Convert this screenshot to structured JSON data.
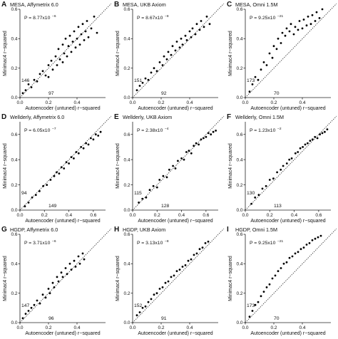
{
  "chart_data": [
    {
      "panel_letter": "A",
      "type": "scatter",
      "title": "MESA, Affymetrix 6.0",
      "xlabel": "Autoencoder (untuned) r−squared",
      "ylabel": "Minimac4 r−squared",
      "xlim": [
        0,
        0.6
      ],
      "ylim": [
        0,
        0.6
      ],
      "x_ticks": [
        "0.0",
        "0.2",
        "0.4"
      ],
      "y_ticks": [
        "0.0",
        "0.2",
        "0.4",
        "0.6"
      ],
      "p_label": "P = 8.77x10",
      "p_exponent": "−6",
      "count_left": "146",
      "count_below": "97",
      "reference_line": "y = x (dotted)",
      "points": [
        [
          0.02,
          0.03
        ],
        [
          0.04,
          0.05
        ],
        [
          0.06,
          0.09
        ],
        [
          0.08,
          0.07
        ],
        [
          0.1,
          0.12
        ],
        [
          0.12,
          0.11
        ],
        [
          0.14,
          0.16
        ],
        [
          0.16,
          0.18
        ],
        [
          0.18,
          0.15
        ],
        [
          0.2,
          0.22
        ],
        [
          0.2,
          0.14
        ],
        [
          0.22,
          0.25
        ],
        [
          0.23,
          0.19
        ],
        [
          0.25,
          0.28
        ],
        [
          0.26,
          0.22
        ],
        [
          0.27,
          0.33
        ],
        [
          0.28,
          0.26
        ],
        [
          0.3,
          0.36
        ],
        [
          0.3,
          0.24
        ],
        [
          0.31,
          0.3
        ],
        [
          0.32,
          0.4
        ],
        [
          0.33,
          0.28
        ],
        [
          0.34,
          0.35
        ],
        [
          0.35,
          0.42
        ],
        [
          0.36,
          0.31
        ],
        [
          0.37,
          0.38
        ],
        [
          0.38,
          0.45
        ],
        [
          0.39,
          0.34
        ],
        [
          0.4,
          0.4
        ],
        [
          0.41,
          0.48
        ],
        [
          0.42,
          0.36
        ],
        [
          0.43,
          0.43
        ],
        [
          0.44,
          0.5
        ],
        [
          0.45,
          0.39
        ],
        [
          0.46,
          0.45
        ],
        [
          0.47,
          0.52
        ],
        [
          0.48,
          0.41
        ],
        [
          0.5,
          0.47
        ],
        [
          0.52,
          0.55
        ],
        [
          0.54,
          0.44
        ]
      ]
    },
    {
      "panel_letter": "B",
      "type": "scatter",
      "title": "MESA, UKB Axiom",
      "xlabel": "Autoencoder (untuned) r−squared",
      "ylabel": "Minimac4 r−squared",
      "xlim": [
        0,
        0.6
      ],
      "ylim": [
        0,
        0.6
      ],
      "x_ticks": [
        "0.0",
        "0.2",
        "0.4"
      ],
      "y_ticks": [
        "0.0",
        "0.2",
        "0.4",
        "0.6"
      ],
      "p_label": "P = 8.67x10",
      "p_exponent": "−8",
      "count_left": "151",
      "count_below": "92",
      "reference_line": "y = x (dotted)",
      "points": [
        [
          0.03,
          0.05
        ],
        [
          0.05,
          0.08
        ],
        [
          0.07,
          0.1
        ],
        [
          0.09,
          0.13
        ],
        [
          0.11,
          0.12
        ],
        [
          0.13,
          0.17
        ],
        [
          0.15,
          0.2
        ],
        [
          0.17,
          0.18
        ],
        [
          0.19,
          0.24
        ],
        [
          0.21,
          0.22
        ],
        [
          0.22,
          0.28
        ],
        [
          0.24,
          0.26
        ],
        [
          0.25,
          0.31
        ],
        [
          0.27,
          0.29
        ],
        [
          0.28,
          0.35
        ],
        [
          0.3,
          0.32
        ],
        [
          0.31,
          0.38
        ],
        [
          0.33,
          0.34
        ],
        [
          0.34,
          0.4
        ],
        [
          0.35,
          0.36
        ],
        [
          0.37,
          0.42
        ],
        [
          0.38,
          0.39
        ],
        [
          0.4,
          0.45
        ],
        [
          0.41,
          0.41
        ],
        [
          0.42,
          0.47
        ],
        [
          0.44,
          0.43
        ],
        [
          0.45,
          0.5
        ],
        [
          0.47,
          0.46
        ],
        [
          0.48,
          0.52
        ],
        [
          0.5,
          0.48
        ],
        [
          0.52,
          0.55
        ],
        [
          0.54,
          0.5
        ]
      ]
    },
    {
      "panel_letter": "C",
      "type": "scatter",
      "title": "MESA, Omni 1.5M",
      "xlabel": "Autoencoder (untuned) r−squared",
      "ylabel": "Minimac4 r−squared",
      "xlim": [
        0,
        0.6
      ],
      "ylim": [
        0,
        0.6
      ],
      "x_ticks": [
        "0.0",
        "0.2",
        "0.4"
      ],
      "y_ticks": [
        "0.0",
        "0.2",
        "0.4",
        "0.6"
      ],
      "p_label": "P = 9.25x10",
      "p_exponent": "−21",
      "count_left": "173",
      "count_below": "70",
      "reference_line": "y = x (dotted)",
      "points": [
        [
          0.03,
          0.04
        ],
        [
          0.05,
          0.09
        ],
        [
          0.07,
          0.14
        ],
        [
          0.09,
          0.12
        ],
        [
          0.11,
          0.19
        ],
        [
          0.13,
          0.24
        ],
        [
          0.15,
          0.22
        ],
        [
          0.17,
          0.3
        ],
        [
          0.19,
          0.27
        ],
        [
          0.2,
          0.35
        ],
        [
          0.22,
          0.33
        ],
        [
          0.23,
          0.4
        ],
        [
          0.25,
          0.37
        ],
        [
          0.26,
          0.44
        ],
        [
          0.28,
          0.42
        ],
        [
          0.29,
          0.47
        ],
        [
          0.31,
          0.45
        ],
        [
          0.32,
          0.5
        ],
        [
          0.34,
          0.43
        ],
        [
          0.35,
          0.48
        ],
        [
          0.37,
          0.46
        ],
        [
          0.38,
          0.52
        ],
        [
          0.4,
          0.47
        ],
        [
          0.41,
          0.53
        ],
        [
          0.43,
          0.49
        ],
        [
          0.44,
          0.55
        ],
        [
          0.46,
          0.5
        ],
        [
          0.47,
          0.56
        ],
        [
          0.49,
          0.52
        ],
        [
          0.5,
          0.58
        ],
        [
          0.52,
          0.54
        ],
        [
          0.54,
          0.6
        ]
      ]
    },
    {
      "panel_letter": "D",
      "type": "scatter",
      "title": "Wellderly, Affymetrix 6.0",
      "xlabel": "Autoencoder (untuned) r−squared",
      "ylabel": "Minimac4 r−squared",
      "xlim": [
        0,
        0.7
      ],
      "ylim": [
        0,
        0.7
      ],
      "x_ticks": [
        "0.0",
        "0.2",
        "0.4",
        "0.6"
      ],
      "y_ticks": [
        "0.0",
        "0.2",
        "0.4",
        "0.6"
      ],
      "p_label": "P = 6.05x10",
      "p_exponent": "−7",
      "count_left": "94",
      "count_below": "149",
      "reference_line": "y = x (dotted)",
      "points": [
        [
          0.04,
          0.03
        ],
        [
          0.07,
          0.06
        ],
        [
          0.1,
          0.1
        ],
        [
          0.13,
          0.12
        ],
        [
          0.16,
          0.15
        ],
        [
          0.19,
          0.19
        ],
        [
          0.22,
          0.2
        ],
        [
          0.25,
          0.24
        ],
        [
          0.28,
          0.27
        ],
        [
          0.3,
          0.3
        ],
        [
          0.32,
          0.29
        ],
        [
          0.34,
          0.34
        ],
        [
          0.36,
          0.33
        ],
        [
          0.38,
          0.38
        ],
        [
          0.4,
          0.37
        ],
        [
          0.42,
          0.42
        ],
        [
          0.44,
          0.41
        ],
        [
          0.46,
          0.46
        ],
        [
          0.48,
          0.45
        ],
        [
          0.5,
          0.5
        ],
        [
          0.52,
          0.49
        ],
        [
          0.54,
          0.53
        ],
        [
          0.56,
          0.52
        ],
        [
          0.58,
          0.57
        ],
        [
          0.6,
          0.56
        ],
        [
          0.62,
          0.6
        ],
        [
          0.64,
          0.59
        ],
        [
          0.66,
          0.62
        ]
      ]
    },
    {
      "panel_letter": "E",
      "type": "scatter",
      "title": "Wellderly, UKB Axiom",
      "xlabel": "Autoencoder (untuned) r−squared",
      "ylabel": "Minimac4 r−squared",
      "xlim": [
        0,
        0.7
      ],
      "ylim": [
        0,
        0.7
      ],
      "x_ticks": [
        "0.0",
        "0.2",
        "0.4",
        "0.6"
      ],
      "y_ticks": [
        "0.0",
        "0.2",
        "0.4",
        "0.6"
      ],
      "p_label": "P = 2.38x10",
      "p_exponent": "−4",
      "count_left": "115",
      "count_below": "128",
      "reference_line": "y = x (dotted)",
      "points": [
        [
          0.05,
          0.06
        ],
        [
          0.08,
          0.09
        ],
        [
          0.11,
          0.1
        ],
        [
          0.14,
          0.16
        ],
        [
          0.17,
          0.19
        ],
        [
          0.2,
          0.18
        ],
        [
          0.22,
          0.24
        ],
        [
          0.25,
          0.27
        ],
        [
          0.28,
          0.26
        ],
        [
          0.3,
          0.32
        ],
        [
          0.33,
          0.35
        ],
        [
          0.35,
          0.33
        ],
        [
          0.37,
          0.39
        ],
        [
          0.4,
          0.41
        ],
        [
          0.42,
          0.4
        ],
        [
          0.44,
          0.46
        ],
        [
          0.46,
          0.47
        ],
        [
          0.48,
          0.45
        ],
        [
          0.5,
          0.51
        ],
        [
          0.52,
          0.53
        ],
        [
          0.54,
          0.52
        ],
        [
          0.56,
          0.56
        ],
        [
          0.58,
          0.57
        ],
        [
          0.6,
          0.58
        ],
        [
          0.62,
          0.61
        ],
        [
          0.64,
          0.6
        ],
        [
          0.66,
          0.62
        ],
        [
          0.68,
          0.63
        ]
      ]
    },
    {
      "panel_letter": "F",
      "type": "scatter",
      "title": "Wellderly, Omni 1.5M",
      "xlabel": "Autoencoder (untuned) r−squared",
      "ylabel": "Minimac4 r−squared",
      "xlim": [
        0,
        0.7
      ],
      "ylim": [
        0,
        0.7
      ],
      "x_ticks": [
        "0.0",
        "0.2",
        "0.4",
        "0.6"
      ],
      "y_ticks": [
        "0.0",
        "0.2",
        "0.4",
        "0.6"
      ],
      "p_label": "P = 1.23x10",
      "p_exponent": "−2",
      "count_left": "130",
      "count_below": "113",
      "reference_line": "y = x (dotted)",
      "points": [
        [
          0.05,
          0.05
        ],
        [
          0.08,
          0.1
        ],
        [
          0.11,
          0.12
        ],
        [
          0.14,
          0.17
        ],
        [
          0.17,
          0.19
        ],
        [
          0.2,
          0.24
        ],
        [
          0.23,
          0.25
        ],
        [
          0.26,
          0.3
        ],
        [
          0.29,
          0.32
        ],
        [
          0.31,
          0.35
        ],
        [
          0.34,
          0.37
        ],
        [
          0.36,
          0.4
        ],
        [
          0.38,
          0.41
        ],
        [
          0.41,
          0.45
        ],
        [
          0.43,
          0.46
        ],
        [
          0.45,
          0.49
        ],
        [
          0.47,
          0.5
        ],
        [
          0.49,
          0.52
        ],
        [
          0.51,
          0.53
        ],
        [
          0.53,
          0.55
        ],
        [
          0.55,
          0.56
        ],
        [
          0.57,
          0.58
        ],
        [
          0.59,
          0.57
        ],
        [
          0.61,
          0.6
        ],
        [
          0.63,
          0.61
        ],
        [
          0.65,
          0.62
        ],
        [
          0.67,
          0.64
        ]
      ]
    },
    {
      "panel_letter": "G",
      "type": "scatter",
      "title": "HGDP, Affymetrix 6.0",
      "xlabel": "Autoencoder (untuned) r−squared",
      "ylabel": "Minimac4 r−squared",
      "xlim": [
        0,
        0.6
      ],
      "ylim": [
        0,
        0.6
      ],
      "x_ticks": [
        "0.0",
        "0.2",
        "0.4"
      ],
      "y_ticks": [
        "0.0",
        "0.2",
        "0.4",
        "0.6"
      ],
      "p_label": "P = 3.71x10",
      "p_exponent": "−6",
      "count_left": "147",
      "count_below": "96",
      "reference_line": "y = x (dotted)",
      "points": [
        [
          0.02,
          0.03
        ],
        [
          0.04,
          0.06
        ],
        [
          0.06,
          0.08
        ],
        [
          0.08,
          0.1
        ],
        [
          0.1,
          0.12
        ],
        [
          0.12,
          0.15
        ],
        [
          0.14,
          0.13
        ],
        [
          0.16,
          0.19
        ],
        [
          0.18,
          0.17
        ],
        [
          0.2,
          0.23
        ],
        [
          0.21,
          0.2
        ],
        [
          0.23,
          0.27
        ],
        [
          0.24,
          0.24
        ],
        [
          0.26,
          0.31
        ],
        [
          0.27,
          0.28
        ],
        [
          0.29,
          0.34
        ],
        [
          0.3,
          0.31
        ],
        [
          0.32,
          0.37
        ],
        [
          0.33,
          0.33
        ],
        [
          0.35,
          0.4
        ],
        [
          0.36,
          0.36
        ],
        [
          0.38,
          0.42
        ],
        [
          0.39,
          0.38
        ],
        [
          0.41,
          0.45
        ],
        [
          0.42,
          0.4
        ],
        [
          0.44,
          0.47
        ],
        [
          0.45,
          0.43
        ]
      ]
    },
    {
      "panel_letter": "H",
      "type": "scatter",
      "title": "HGDP, UKB Axiom",
      "xlabel": "Autoencoder (untuned) r−squared",
      "ylabel": "Minimac4 r−squared",
      "xlim": [
        0,
        0.6
      ],
      "ylim": [
        0,
        0.6
      ],
      "x_ticks": [
        "0.0",
        "0.2",
        "0.4"
      ],
      "y_ticks": [
        "0.0",
        "0.2",
        "0.4",
        "0.6"
      ],
      "p_label": "P = 3.13x10",
      "p_exponent": "−8",
      "count_left": "152",
      "count_below": "91",
      "reference_line": "y = x (dotted)",
      "points": [
        [
          0.03,
          0.05
        ],
        [
          0.05,
          0.07
        ],
        [
          0.07,
          0.1
        ],
        [
          0.09,
          0.11
        ],
        [
          0.11,
          0.14
        ],
        [
          0.13,
          0.16
        ],
        [
          0.15,
          0.19
        ],
        [
          0.17,
          0.2
        ],
        [
          0.19,
          0.23
        ],
        [
          0.21,
          0.24
        ],
        [
          0.23,
          0.27
        ],
        [
          0.25,
          0.28
        ],
        [
          0.27,
          0.31
        ],
        [
          0.29,
          0.32
        ],
        [
          0.31,
          0.35
        ],
        [
          0.33,
          0.36
        ],
        [
          0.35,
          0.38
        ],
        [
          0.37,
          0.39
        ],
        [
          0.39,
          0.42
        ],
        [
          0.41,
          0.43
        ],
        [
          0.43,
          0.46
        ],
        [
          0.45,
          0.47
        ],
        [
          0.47,
          0.5
        ],
        [
          0.49,
          0.51
        ],
        [
          0.51,
          0.54
        ],
        [
          0.53,
          0.55
        ]
      ]
    },
    {
      "panel_letter": "I",
      "type": "scatter",
      "title": "HGDP, Omni 1.5M",
      "xlabel": "Autoencoder (untuned) r−squared",
      "ylabel": "Minimac4 r−squared",
      "xlim": [
        0,
        0.6
      ],
      "ylim": [
        0,
        0.6
      ],
      "x_ticks": [
        "0.0",
        "0.2",
        "0.4"
      ],
      "y_ticks": [
        "0.0",
        "0.2",
        "0.4",
        "0.6"
      ],
      "p_label": "P = 9.25x10",
      "p_exponent": "−21",
      "count_left": "173",
      "count_below": "70",
      "reference_line": "y = x (dotted)",
      "points": [
        [
          0.03,
          0.04
        ],
        [
          0.05,
          0.08
        ],
        [
          0.07,
          0.12
        ],
        [
          0.09,
          0.14
        ],
        [
          0.11,
          0.18
        ],
        [
          0.13,
          0.21
        ],
        [
          0.15,
          0.24
        ],
        [
          0.17,
          0.26
        ],
        [
          0.19,
          0.3
        ],
        [
          0.21,
          0.32
        ],
        [
          0.23,
          0.35
        ],
        [
          0.25,
          0.37
        ],
        [
          0.27,
          0.4
        ],
        [
          0.29,
          0.41
        ],
        [
          0.31,
          0.44
        ],
        [
          0.33,
          0.45
        ],
        [
          0.35,
          0.47
        ],
        [
          0.37,
          0.48
        ],
        [
          0.39,
          0.5
        ],
        [
          0.41,
          0.51
        ],
        [
          0.43,
          0.53
        ],
        [
          0.45,
          0.54
        ],
        [
          0.47,
          0.56
        ],
        [
          0.49,
          0.57
        ],
        [
          0.51,
          0.58
        ],
        [
          0.53,
          0.59
        ]
      ]
    }
  ]
}
